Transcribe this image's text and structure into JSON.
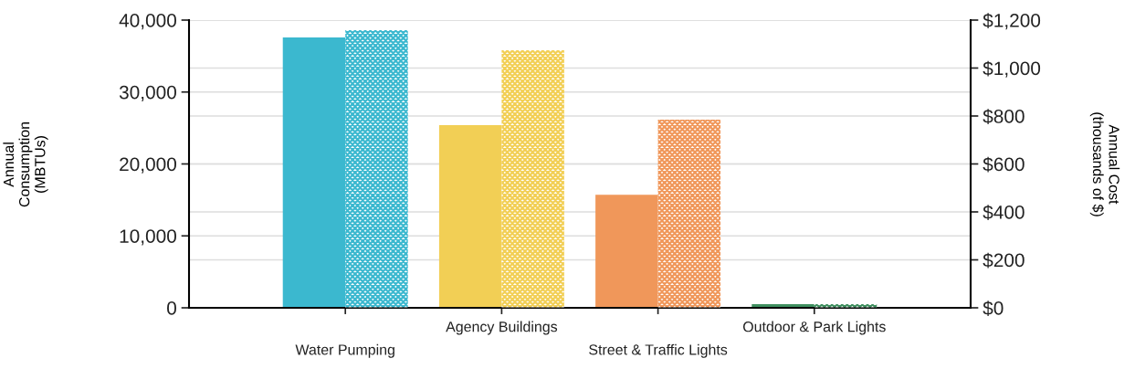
{
  "chart_data": {
    "type": "bar",
    "ylabel": "Annual\nConsumption\n(MBTUs)",
    "y2label": "Annual Cost\n(thousands of $)",
    "categories": [
      "Water Pumping",
      "Agency Buildings",
      "Street & Traffic Lights",
      "Outdoor & Park Lights"
    ],
    "series": [
      {
        "colors": [
          "#3bb8cf",
          "#f2cf55",
          "#f0975a",
          "#3f8f5f"
        ],
        "values": [
          37600,
          25400,
          15700,
          500
        ]
      },
      {
        "axis": "y2",
        "colors": [
          "#3bb8cf",
          "#f2cf55",
          "#f0975a",
          "#3f8f5f"
        ],
        "values": [
          1158,
          1074,
          785,
          15
        ]
      }
    ],
    "ylim": [
      0,
      40000
    ],
    "yticks": [
      {
        "value": 0,
        "label": "0"
      },
      {
        "value": 10000,
        "label": "10,000"
      },
      {
        "value": 20000,
        "label": "20,000"
      },
      {
        "value": 30000,
        "label": "30,000"
      },
      {
        "value": 40000,
        "label": "40,000"
      }
    ],
    "y2lim": [
      0,
      1200
    ],
    "y2ticks": [
      {
        "value": 0,
        "label": "$0"
      },
      {
        "value": 200,
        "label": "$200"
      },
      {
        "value": 400,
        "label": "$400"
      },
      {
        "value": 600,
        "label": "$600"
      },
      {
        "value": 800,
        "label": "$800"
      },
      {
        "value": 1000,
        "label": "$1,000"
      },
      {
        "value": 1200,
        "label": "$1,200"
      }
    ],
    "grid": true
  }
}
